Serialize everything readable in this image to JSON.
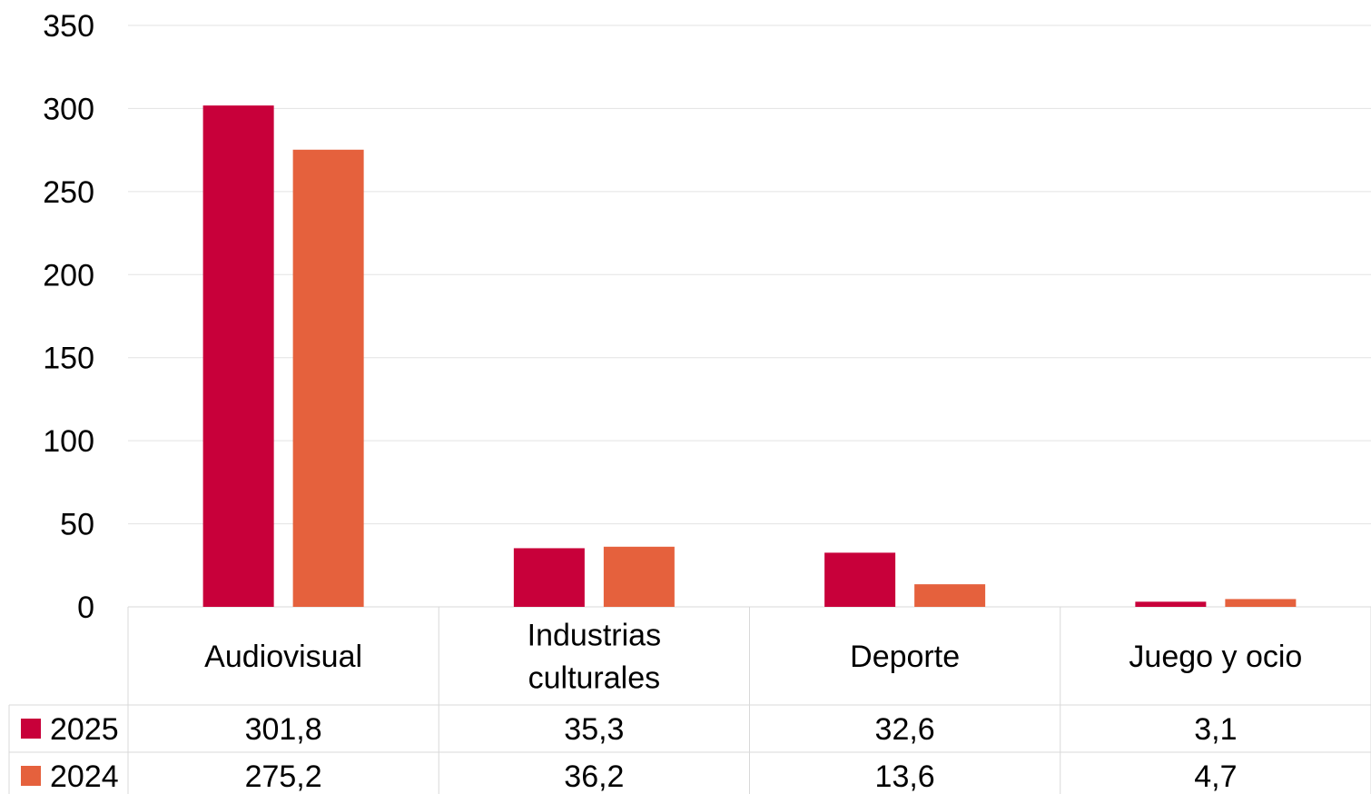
{
  "chart_data": {
    "type": "bar",
    "categories": [
      [
        "Audiovisual"
      ],
      [
        "Industrias",
        "culturales"
      ],
      [
        "Deporte"
      ],
      [
        "Juego y ocio"
      ]
    ],
    "series": [
      {
        "name": "2025",
        "color": "#c8003a",
        "values": [
          301.8,
          35.3,
          32.6,
          3.1
        ],
        "labels": [
          "301,8",
          "35,3",
          "32,6",
          "3,1"
        ]
      },
      {
        "name": "2024",
        "color": "#e5613d",
        "values": [
          275.2,
          36.2,
          13.6,
          4.7
        ],
        "labels": [
          "275,2",
          "36,2",
          "13,6",
          "4,7"
        ]
      }
    ],
    "ylim": [
      0,
      350
    ],
    "yticks": [
      0,
      50,
      100,
      150,
      200,
      250,
      300,
      350
    ],
    "grid": true,
    "legend": "data-table"
  }
}
